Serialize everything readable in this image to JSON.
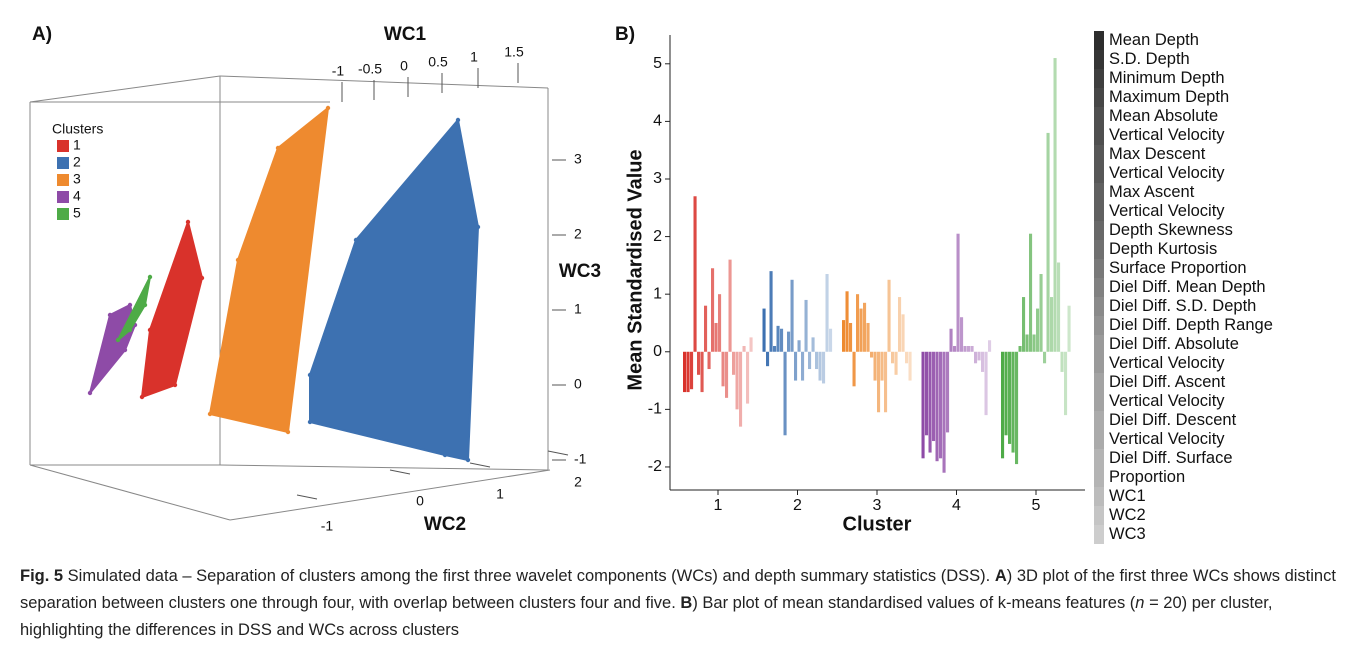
{
  "chart_data": [
    {
      "type": "scatter3d",
      "panel_label": "A)",
      "xlabel": "WC1",
      "ylabel": "WC2",
      "zlabel": "WC3",
      "xticks": [
        -1,
        -0.5,
        0,
        0.5,
        1,
        1.5
      ],
      "yticks": [
        -1,
        0,
        1,
        2
      ],
      "zticks": [
        -1,
        0,
        1,
        2,
        3
      ],
      "legend_title": "Clusters",
      "series": [
        {
          "name": "1",
          "color": "#d9322b"
        },
        {
          "name": "2",
          "color": "#3d71b1"
        },
        {
          "name": "3",
          "color": "#ee8a2f"
        },
        {
          "name": "4",
          "color": "#8e4ba7"
        },
        {
          "name": "5",
          "color": "#4eab47"
        }
      ]
    },
    {
      "type": "grouped_bar",
      "panel_label": "B)",
      "xlabel": "Cluster",
      "ylabel": "Mean Standardised Value",
      "categories": [
        "1",
        "2",
        "3",
        "4",
        "5"
      ],
      "category_colors": [
        "#d9322b",
        "#3d71b1",
        "#ee8a2f",
        "#8e4ba7",
        "#4eab47"
      ],
      "ylim": [
        -2.4,
        5.5
      ],
      "yticks": [
        -2,
        -1,
        0,
        1,
        2,
        3,
        4,
        5
      ],
      "series": [
        {
          "name": "Mean Depth",
          "values": [
            -0.7,
            0.75,
            0.55,
            -1.85,
            -1.85
          ]
        },
        {
          "name": "S.D. Depth",
          "values": [
            -0.7,
            -0.25,
            1.05,
            -1.45,
            -1.45
          ]
        },
        {
          "name": "Minimum Depth",
          "values": [
            -0.65,
            1.4,
            0.5,
            -1.75,
            -1.6
          ]
        },
        {
          "name": "Maximum Depth",
          "values": [
            2.7,
            0.1,
            -0.6,
            -1.55,
            -1.75
          ]
        },
        {
          "name": "Mean Absolute\nVertical Velocity",
          "values": [
            -0.4,
            0.45,
            1.0,
            -1.9,
            -1.95
          ]
        },
        {
          "name": "Max Descent\nVertical Velocity",
          "values": [
            -0.7,
            0.4,
            0.75,
            -1.85,
            0.1
          ]
        },
        {
          "name": "Max Ascent\nVertical Velocity",
          "values": [
            0.8,
            -1.45,
            0.85,
            -2.1,
            0.95
          ]
        },
        {
          "name": "Depth Skewness",
          "values": [
            -0.3,
            0.35,
            0.5,
            -1.4,
            0.3
          ]
        },
        {
          "name": "Depth Kurtosis",
          "values": [
            1.45,
            1.25,
            -0.1,
            0.4,
            2.05
          ]
        },
        {
          "name": "Surface Proportion",
          "values": [
            0.5,
            -0.5,
            -0.5,
            0.1,
            0.3
          ]
        },
        {
          "name": "Diel Diff. Mean Depth",
          "values": [
            1.0,
            0.2,
            -1.05,
            2.05,
            0.75
          ]
        },
        {
          "name": "Diel Diff. S.D. Depth",
          "values": [
            -0.6,
            -0.5,
            -0.5,
            0.6,
            1.35
          ]
        },
        {
          "name": "Diel Diff. Depth Range",
          "values": [
            -0.8,
            0.9,
            -1.05,
            0.1,
            -0.2
          ]
        },
        {
          "name": "Diel Diff. Absolute\nVertical Velocity",
          "values": [
            1.6,
            -0.3,
            1.25,
            0.1,
            3.8
          ]
        },
        {
          "name": "Diel Diff. Ascent\nVertical Velocity",
          "values": [
            -0.4,
            0.25,
            -0.2,
            0.1,
            0.95
          ]
        },
        {
          "name": "Diel Diff. Descent\nVertical Velocity",
          "values": [
            -1.0,
            -0.3,
            -0.4,
            -0.2,
            5.1
          ]
        },
        {
          "name": "Diel Diff. Surface\nProportion",
          "values": [
            -1.3,
            -0.5,
            0.95,
            -0.15,
            1.55
          ]
        },
        {
          "name": "WC1",
          "values": [
            0.1,
            -0.55,
            0.65,
            -0.35,
            -0.35
          ]
        },
        {
          "name": "WC2",
          "values": [
            -0.9,
            1.35,
            -0.2,
            -1.1,
            -1.1
          ]
        },
        {
          "name": "WC3",
          "values": [
            0.25,
            0.4,
            -0.5,
            0.2,
            0.8
          ]
        }
      ]
    }
  ],
  "caption": [
    {
      "style": "bold",
      "text": "Fig. 5"
    },
    {
      "style": "normal",
      "text": "  Simulated data – Separation of clusters among the first three wavelet components (WCs) and depth summary statistics (DSS). "
    },
    {
      "style": "bold",
      "text": "A"
    },
    {
      "style": "normal",
      "text": ") 3D plot of the first three WCs shows distinct separation between clusters one through four, with overlap between clusters four and five. "
    },
    {
      "style": "bold",
      "text": "B"
    },
    {
      "style": "normal",
      "text": ") Bar plot of mean standardised values of k-means features ("
    },
    {
      "style": "italic",
      "text": "n"
    },
    {
      "style": "normal",
      "text": " = 20) per cluster, highlighting the differences in DSS and WCs across clusters"
    }
  ]
}
